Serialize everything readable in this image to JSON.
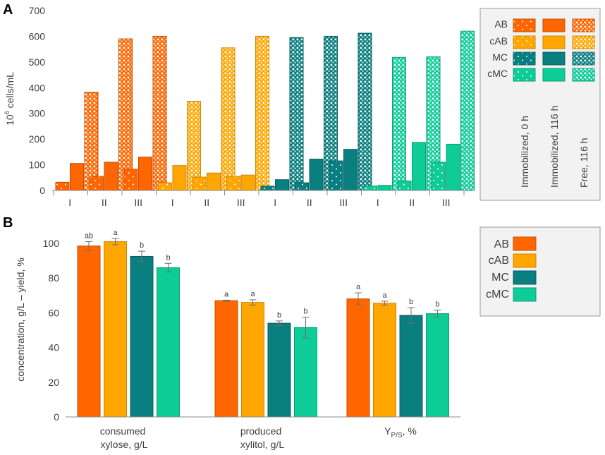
{
  "chart_data": [
    {
      "panel_label": "A",
      "type": "bar",
      "ylabel_base": "10",
      "ylabel_exp": "6",
      "ylabel_rest": " cells/mL",
      "ylim": [
        0,
        700
      ],
      "yticks": [
        "0",
        "100",
        "200",
        "300",
        "400",
        "500",
        "600",
        "700"
      ],
      "group_labels": [
        "I",
        "II",
        "III",
        "I",
        "II",
        "III",
        "I",
        "II",
        "III",
        "I",
        "II",
        "III"
      ],
      "series": [
        {
          "name": "Immobilized, 0 h",
          "values": [
            32,
            55,
            83,
            30,
            52,
            55,
            17,
            30,
            115,
            17,
            37,
            110
          ]
        },
        {
          "name": "Immobilized, 116 h",
          "values": [
            105,
            110,
            130,
            97,
            68,
            60,
            42,
            122,
            160,
            20,
            187,
            180
          ]
        },
        {
          "name": "Free, 116 h",
          "values": [
            382,
            590,
            600,
            347,
            555,
            600,
            595,
            600,
            612,
            518,
            520,
            620
          ]
        }
      ],
      "group_strain": [
        "AB",
        "AB",
        "AB",
        "cAB",
        "cAB",
        "cAB",
        "MC",
        "MC",
        "MC",
        "cMC",
        "cMC",
        "cMC"
      ],
      "legend": {
        "rows": [
          "AB",
          "cAB",
          "MC",
          "cMC"
        ],
        "columns": [
          "Immobilized, 0 h",
          "Immobilized, 116 h",
          "Free, 116 h"
        ]
      }
    },
    {
      "panel_label": "B",
      "type": "bar",
      "ylabel": "concentration, g/L – yield, %",
      "ylim": [
        0,
        100
      ],
      "yticks": [
        "0",
        "20",
        "40",
        "60",
        "80",
        "100"
      ],
      "categories": [
        {
          "line1": "consumed",
          "line2": "xylose,  g/L"
        },
        {
          "line1": "produced",
          "line2": "xylitol,  g/L"
        },
        {
          "line1": "Y",
          "sub": "P/S",
          "rest": ",  %"
        }
      ],
      "series": [
        {
          "name": "AB",
          "values": [
            98.5,
            67,
            68
          ],
          "errors": [
            2.5,
            0.3,
            3.5
          ],
          "letters": [
            "ab",
            "a",
            "a"
          ]
        },
        {
          "name": "cAB",
          "values": [
            101,
            66,
            65.5
          ],
          "errors": [
            1.8,
            1.5,
            1.2
          ],
          "letters": [
            "a",
            "a",
            "a"
          ]
        },
        {
          "name": "MC",
          "values": [
            92.5,
            54,
            58.5
          ],
          "errors": [
            3.0,
            1.3,
            4.5
          ],
          "letters": [
            "b",
            "b",
            "b"
          ]
        },
        {
          "name": "cMC",
          "values": [
            86,
            51.5,
            59.5
          ],
          "errors": [
            2.5,
            6.0,
            2.0
          ],
          "letters": [
            "b",
            "b",
            "b"
          ]
        }
      ],
      "legend": [
        "AB",
        "cAB",
        "MC",
        "cMC"
      ]
    }
  ],
  "colors": {
    "AB": {
      "fill": "#ff6600",
      "stroke": "#c84e00"
    },
    "cAB": {
      "fill": "#ffa600",
      "stroke": "#cf8600"
    },
    "MC": {
      "fill": "#0a7f80",
      "stroke": "#075f60"
    },
    "cMC": {
      "fill": "#0dcc98",
      "stroke": "#0a9f76"
    },
    "axis": "#8c8c8c",
    "error_bar": "#6e6e6e",
    "legend_bg": "#f2f2f2",
    "legend_border": "#9a9a9a"
  }
}
